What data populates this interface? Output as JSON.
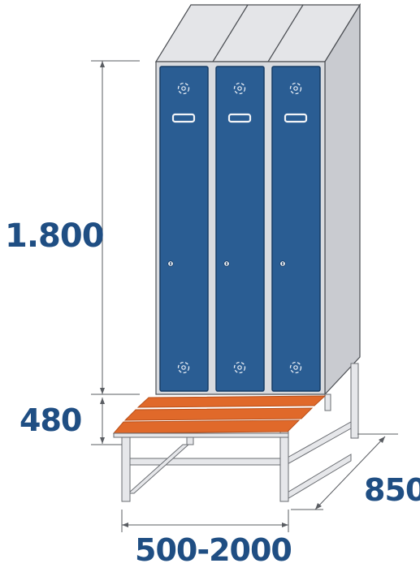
{
  "dimensions": {
    "height": "1.800",
    "bench_height": "480",
    "depth": "850",
    "width": "500-2000"
  },
  "colors": {
    "door": "#2a5d93",
    "door_edge": "#163c66",
    "cabinet_front": "#d9dbdf",
    "cabinet_side": "#c9cbd0",
    "cabinet_top": "#e4e5e8",
    "outline": "#4a4d52",
    "bench_slat": "#e0692a",
    "bench_slat_dark": "#b8501b",
    "frame": "#e6e7ea",
    "dim_line": "#5a5d62",
    "label": "#1f4e83"
  },
  "icons": {
    "vent": "vent-icon",
    "handle": "handle-icon",
    "lock": "lock-icon"
  }
}
